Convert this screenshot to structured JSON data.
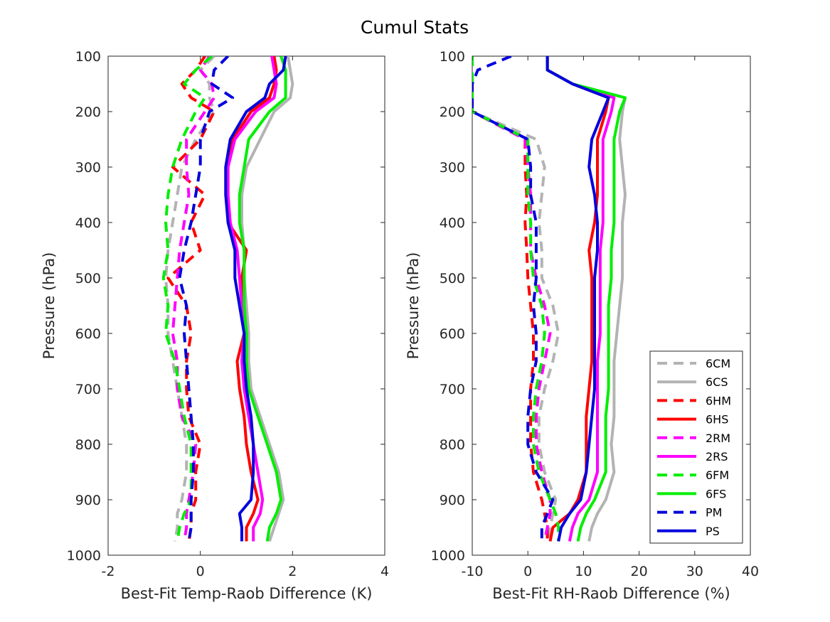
{
  "figure": {
    "title": "Cumul Stats"
  },
  "chart_data": [
    {
      "type": "line",
      "xlabel": "Best-Fit Temp-Raob Difference (K)",
      "ylabel": "Pressure (hPa)",
      "xlim": [
        -2,
        4
      ],
      "ylim": [
        100,
        1000
      ],
      "y_reversed": true,
      "xticks": [
        "-2",
        "0",
        "2",
        "4"
      ],
      "yticks": [
        "100",
        "200",
        "300",
        "400",
        "500",
        "600",
        "700",
        "800",
        "900",
        "1000"
      ],
      "legend": "none",
      "pressure": [
        100,
        125,
        150,
        175,
        200,
        250,
        300,
        350,
        400,
        450,
        500,
        550,
        600,
        650,
        700,
        750,
        800,
        850,
        900,
        925,
        950,
        975
      ],
      "series": [
        {
          "name": "6CM",
          "color": "#b3b3b3",
          "dash": true,
          "values": [
            0.3,
            0.0,
            0.2,
            0.2,
            0.3,
            -0.1,
            -0.4,
            -0.5,
            -0.6,
            -0.7,
            -0.75,
            -0.7,
            -0.7,
            -0.6,
            -0.5,
            -0.4,
            -0.3,
            -0.3,
            -0.4,
            -0.5,
            -0.5,
            -0.55
          ]
        },
        {
          "name": "6CS",
          "color": "#b3b3b3",
          "dash": false,
          "values": [
            1.9,
            1.95,
            2.0,
            1.95,
            1.6,
            1.3,
            1.0,
            0.9,
            0.9,
            0.95,
            0.95,
            1.0,
            1.05,
            1.05,
            1.1,
            1.3,
            1.5,
            1.7,
            1.8,
            1.7,
            1.6,
            1.5
          ]
        },
        {
          "name": "6HM",
          "color": "#ff0000",
          "dash": true,
          "values": [
            0.1,
            -0.1,
            -0.4,
            -0.2,
            0.3,
            0.0,
            -0.6,
            0.1,
            -0.2,
            0.0,
            -0.7,
            -0.3,
            -0.2,
            -0.3,
            -0.3,
            -0.25,
            0.0,
            -0.1,
            -0.1,
            -0.2,
            -0.2,
            -0.25
          ]
        },
        {
          "name": "6HS",
          "color": "#ff0000",
          "dash": false,
          "values": [
            1.6,
            1.65,
            1.6,
            1.5,
            1.1,
            0.7,
            0.6,
            0.6,
            0.6,
            1.0,
            0.9,
            0.9,
            0.95,
            0.8,
            0.85,
            0.95,
            1.0,
            1.1,
            1.25,
            1.15,
            1.0,
            1.0
          ]
        },
        {
          "name": "2RM",
          "color": "#ff00ff",
          "dash": true,
          "values": [
            0.2,
            0.0,
            0.25,
            0.3,
            0.1,
            -0.3,
            -0.3,
            -0.25,
            -0.35,
            -0.45,
            -0.5,
            -0.55,
            -0.6,
            -0.5,
            -0.5,
            -0.4,
            -0.1,
            -0.15,
            -0.25,
            -0.3,
            -0.3,
            -0.35
          ]
        },
        {
          "name": "2RS",
          "color": "#ff00ff",
          "dash": false,
          "values": [
            1.55,
            1.6,
            1.65,
            1.6,
            1.2,
            0.75,
            0.6,
            0.6,
            0.65,
            0.8,
            0.85,
            0.9,
            0.95,
            0.9,
            0.95,
            1.05,
            1.15,
            1.25,
            1.35,
            1.3,
            1.15,
            1.15
          ]
        },
        {
          "name": "6FM",
          "color": "#00ee00",
          "dash": true,
          "values": [
            0.25,
            -0.1,
            -0.35,
            0.1,
            -0.1,
            -0.4,
            -0.6,
            -0.7,
            -0.75,
            -0.7,
            -0.8,
            -0.7,
            -0.75,
            -0.55,
            -0.45,
            -0.35,
            -0.2,
            -0.2,
            -0.2,
            -0.35,
            -0.45,
            -0.5
          ]
        },
        {
          "name": "6FS",
          "color": "#00ee00",
          "dash": false,
          "values": [
            1.75,
            1.85,
            1.85,
            1.85,
            1.5,
            1.05,
            0.95,
            0.85,
            0.85,
            0.95,
            0.95,
            0.95,
            1.0,
            1.0,
            1.05,
            1.25,
            1.45,
            1.65,
            1.75,
            1.65,
            1.5,
            1.45
          ]
        },
        {
          "name": "PM",
          "color": "#0000dd",
          "dash": true,
          "values": [
            0.6,
            0.3,
            0.25,
            0.7,
            0.2,
            0.0,
            0.0,
            -0.1,
            -0.2,
            -0.35,
            -0.45,
            -0.3,
            -0.35,
            -0.3,
            -0.25,
            -0.2,
            -0.15,
            -0.15,
            -0.2,
            -0.2,
            -0.2,
            -0.25
          ]
        },
        {
          "name": "PS",
          "color": "#0000dd",
          "dash": false,
          "values": [
            1.85,
            1.8,
            1.5,
            1.4,
            1.0,
            0.65,
            0.55,
            0.55,
            0.6,
            0.75,
            0.75,
            0.85,
            0.95,
            0.95,
            1.0,
            1.1,
            1.15,
            1.15,
            1.1,
            0.85,
            0.9,
            0.9
          ]
        }
      ]
    },
    {
      "type": "line",
      "xlabel": "Best-Fit RH-Raob Difference (%)",
      "ylabel": "Pressure (hPa)",
      "xlim": [
        -10,
        40
      ],
      "ylim": [
        100,
        1000
      ],
      "y_reversed": true,
      "xticks": [
        "-10",
        "0",
        "10",
        "20",
        "30",
        "40"
      ],
      "yticks": [
        "100",
        "200",
        "300",
        "400",
        "500",
        "600",
        "700",
        "800",
        "900",
        "1000"
      ],
      "legend": "lower-right",
      "pressure": [
        100,
        125,
        150,
        175,
        200,
        250,
        300,
        350,
        400,
        450,
        500,
        550,
        600,
        650,
        700,
        750,
        800,
        850,
        900,
        925,
        950,
        975
      ],
      "series": [
        {
          "name": "6CM",
          "color": "#b3b3b3",
          "dash": true,
          "values": [
            -10,
            -10,
            -10,
            -10,
            -10,
            1.5,
            3.0,
            2.5,
            2.0,
            2.5,
            2.5,
            4.5,
            5.5,
            4.5,
            3.0,
            2.0,
            2.0,
            3.0,
            5.0,
            4.5,
            4.0,
            3.5
          ]
        },
        {
          "name": "6CS",
          "color": "#b3b3b3",
          "dash": false,
          "values": [
            3.5,
            3.5,
            8.0,
            17.5,
            17.0,
            16.5,
            17.0,
            17.5,
            17.0,
            17.0,
            17.0,
            16.5,
            16.0,
            15.5,
            15.5,
            15.5,
            15.0,
            15.5,
            14.0,
            12.5,
            11.5,
            11.0
          ]
        },
        {
          "name": "6HM",
          "color": "#ff0000",
          "dash": true,
          "values": [
            -10,
            -10,
            -10,
            -10,
            -10,
            -0.5,
            -0.5,
            -0.2,
            -0.5,
            -0.2,
            0.0,
            0.5,
            1.0,
            1.0,
            0.5,
            0.5,
            0.5,
            1.0,
            2.5,
            3.0,
            3.5,
            3.5
          ]
        },
        {
          "name": "6HS",
          "color": "#ff0000",
          "dash": false,
          "values": [
            3.5,
            3.5,
            8.0,
            14.5,
            14.0,
            12.5,
            12.5,
            12.5,
            12.0,
            11.0,
            11.5,
            11.5,
            11.5,
            11.5,
            11.0,
            10.5,
            10.5,
            10.5,
            9.0,
            7.5,
            4.5,
            4.0
          ]
        },
        {
          "name": "2RM",
          "color": "#ff00ff",
          "dash": true,
          "values": [
            -10,
            -10,
            -10,
            -10,
            -10,
            -0.5,
            0.0,
            0.5,
            0.5,
            0.5,
            1.5,
            3.0,
            4.0,
            3.0,
            2.0,
            1.5,
            1.5,
            2.5,
            4.0,
            4.0,
            3.5,
            3.0
          ]
        },
        {
          "name": "2RS",
          "color": "#ff00ff",
          "dash": false,
          "values": [
            3.5,
            3.5,
            8.0,
            15.5,
            15.0,
            13.5,
            13.5,
            13.5,
            13.5,
            13.0,
            13.0,
            13.0,
            13.0,
            12.5,
            12.5,
            12.5,
            12.5,
            12.5,
            11.0,
            9.0,
            8.0,
            7.5
          ]
        },
        {
          "name": "6FM",
          "color": "#00ee00",
          "dash": true,
          "values": [
            -10,
            -10,
            -10,
            -10,
            -10,
            0.0,
            0.0,
            0.0,
            0.5,
            0.5,
            1.0,
            2.5,
            3.0,
            2.5,
            1.5,
            1.0,
            1.0,
            2.0,
            4.0,
            5.0,
            5.5,
            5.5
          ]
        },
        {
          "name": "6FS",
          "color": "#00ee00",
          "dash": false,
          "values": [
            3.5,
            3.5,
            8.0,
            17.5,
            16.5,
            15.5,
            15.5,
            15.5,
            15.5,
            15.0,
            15.0,
            14.5,
            14.5,
            14.5,
            14.5,
            14.0,
            14.0,
            14.0,
            12.0,
            10.5,
            9.5,
            9.0
          ]
        },
        {
          "name": "PM",
          "color": "#0000dd",
          "dash": true,
          "values": [
            -3,
            -9,
            -10,
            -10,
            -10,
            0.0,
            0.5,
            0.5,
            1.5,
            1.5,
            1.5,
            1.0,
            1.5,
            1.5,
            0.5,
            0.0,
            0.0,
            1.5,
            4.5,
            3.5,
            2.5,
            2.5
          ]
        },
        {
          "name": "PS",
          "color": "#0000dd",
          "dash": false,
          "values": [
            3.5,
            3.5,
            8.0,
            14.5,
            13.5,
            11.5,
            11.0,
            12.0,
            12.5,
            12.5,
            12.0,
            12.0,
            12.0,
            12.0,
            12.0,
            11.5,
            11.0,
            10.5,
            9.5,
            7.5,
            6.0,
            5.5
          ]
        }
      ]
    }
  ]
}
